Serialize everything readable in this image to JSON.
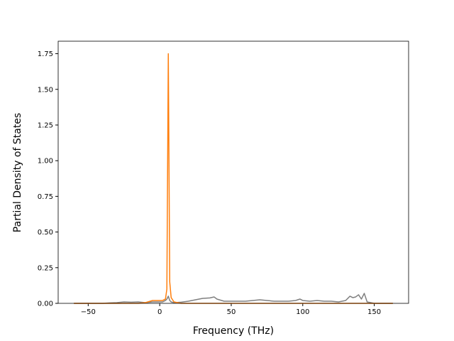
{
  "chart_data": {
    "type": "line",
    "xlabel": "Frequency (THz)",
    "ylabel": "Partial Density of States",
    "x": [
      -60,
      -50,
      -40,
      -35,
      -30,
      -25,
      -20,
      -15,
      -10,
      -5,
      -2,
      0,
      2,
      4,
      5,
      6,
      7,
      8,
      10,
      15,
      20,
      25,
      30,
      35,
      38,
      40,
      45,
      50,
      55,
      60,
      65,
      70,
      75,
      80,
      85,
      90,
      95,
      98,
      100,
      105,
      110,
      115,
      120,
      125,
      130,
      133,
      135,
      137,
      139,
      141,
      143,
      145,
      150,
      155,
      163
    ],
    "series": [
      {
        "color": "#7f7f7f",
        "values": [
          0,
          0,
          0,
          0.003,
          0.005,
          0.01,
          0.008,
          0.01,
          0.005,
          0.01,
          0.01,
          0.01,
          0.01,
          0.02,
          0.03,
          0.05,
          0.02,
          0.01,
          0.005,
          0.008,
          0.015,
          0.025,
          0.035,
          0.038,
          0.045,
          0.03,
          0.015,
          0.015,
          0.015,
          0.015,
          0.02,
          0.025,
          0.02,
          0.015,
          0.015,
          0.015,
          0.02,
          0.03,
          0.02,
          0.015,
          0.02,
          0.015,
          0.015,
          0.01,
          0.02,
          0.05,
          0.04,
          0.045,
          0.06,
          0.03,
          0.07,
          0.01,
          0,
          0,
          0
        ]
      },
      {
        "color": "#ff7f0e",
        "values": [
          0,
          0,
          0,
          0,
          0,
          0,
          0,
          0,
          0.005,
          0.02,
          0.02,
          0.02,
          0.02,
          0.03,
          0.1,
          1.75,
          0.15,
          0.04,
          0.01,
          0,
          0,
          0,
          0,
          0,
          0,
          0,
          0,
          0,
          0,
          0,
          0,
          0,
          0,
          0,
          0,
          0,
          0,
          0,
          0,
          0,
          0,
          0,
          0,
          0,
          0,
          0,
          0,
          0,
          0,
          0,
          0,
          0,
          0,
          0,
          0
        ]
      }
    ],
    "xlim": [
      -71,
      174
    ],
    "ylim": [
      0,
      1.8375
    ],
    "xticks": [
      {
        "value": -50,
        "label": "−50"
      },
      0,
      50,
      100,
      150
    ],
    "yticks": [
      {
        "value": 0,
        "label": "0.00"
      },
      {
        "value": 0.25,
        "label": "0.25"
      },
      {
        "value": 0.5,
        "label": "0.50"
      },
      {
        "value": 0.75,
        "label": "0.75"
      },
      {
        "value": 1,
        "label": "1.00"
      },
      {
        "value": 1.25,
        "label": "1.25"
      },
      {
        "value": 1.5,
        "label": "1.50"
      },
      {
        "value": 1.75,
        "label": "1.75"
      }
    ],
    "grid": false
  }
}
